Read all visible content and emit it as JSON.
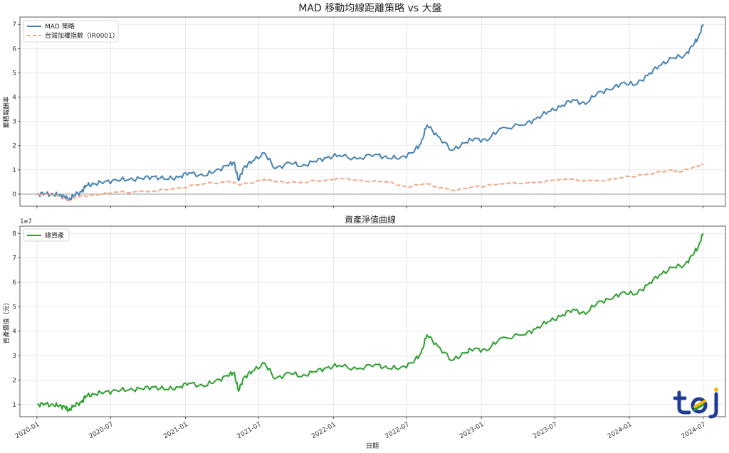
{
  "chart_data": [
    {
      "type": "line",
      "title": "MAD 移動均線距離策略 vs 大盤",
      "ylabel": "累積報酬率",
      "xlabel": "",
      "ylim": [
        -0.5,
        7.3
      ],
      "y_ticks": [
        "0",
        "1",
        "2",
        "3",
        "4",
        "5",
        "6",
        "7"
      ],
      "grid": true,
      "legend": "top-left",
      "series": [
        {
          "name": "MAD 策略",
          "color": "#4682b4",
          "style": "solid",
          "points": [
            [
              "2020-01-02",
              0.0
            ],
            [
              "2020-01-20",
              0.02
            ],
            [
              "2020-02-10",
              -0.02
            ],
            [
              "2020-02-25",
              -0.05
            ],
            [
              "2020-03-10",
              -0.1
            ],
            [
              "2020-03-19",
              -0.25
            ],
            [
              "2020-04-01",
              -0.05
            ],
            [
              "2020-04-20",
              0.1
            ],
            [
              "2020-05-01",
              0.35
            ],
            [
              "2020-05-20",
              0.42
            ],
            [
              "2020-06-15",
              0.5
            ],
            [
              "2020-07-15",
              0.58
            ],
            [
              "2020-08-15",
              0.6
            ],
            [
              "2020-09-15",
              0.65
            ],
            [
              "2020-10-15",
              0.72
            ],
            [
              "2020-11-15",
              0.62
            ],
            [
              "2020-12-15",
              0.7
            ],
            [
              "2021-01-10",
              0.88
            ],
            [
              "2021-02-15",
              0.75
            ],
            [
              "2021-03-15",
              0.95
            ],
            [
              "2021-04-15",
              1.18
            ],
            [
              "2021-05-01",
              1.32
            ],
            [
              "2021-05-12",
              0.55
            ],
            [
              "2021-05-25",
              1.1
            ],
            [
              "2021-06-15",
              1.35
            ],
            [
              "2021-07-15",
              1.7
            ],
            [
              "2021-08-10",
              1.05
            ],
            [
              "2021-09-15",
              1.3
            ],
            [
              "2021-10-15",
              1.15
            ],
            [
              "2021-11-15",
              1.35
            ],
            [
              "2021-12-15",
              1.5
            ],
            [
              "2022-01-15",
              1.6
            ],
            [
              "2022-03-01",
              1.45
            ],
            [
              "2022-04-15",
              1.65
            ],
            [
              "2022-05-15",
              1.48
            ],
            [
              "2022-06-15",
              1.5
            ],
            [
              "2022-07-15",
              1.7
            ],
            [
              "2022-08-05",
              2.1
            ],
            [
              "2022-08-20",
              2.85
            ],
            [
              "2022-09-15",
              2.4
            ],
            [
              "2022-10-20",
              1.8
            ],
            [
              "2022-11-20",
              2.1
            ],
            [
              "2022-12-15",
              2.3
            ],
            [
              "2023-01-15",
              2.2
            ],
            [
              "2023-02-15",
              2.7
            ],
            [
              "2023-04-15",
              2.85
            ],
            [
              "2023-05-15",
              3.1
            ],
            [
              "2023-06-15",
              3.4
            ],
            [
              "2023-07-15",
              3.6
            ],
            [
              "2023-08-15",
              3.9
            ],
            [
              "2023-09-15",
              3.7
            ],
            [
              "2023-10-15",
              4.2
            ],
            [
              "2023-11-15",
              4.3
            ],
            [
              "2023-12-15",
              4.6
            ],
            [
              "2024-01-15",
              4.5
            ],
            [
              "2024-02-15",
              4.9
            ],
            [
              "2024-03-15",
              5.3
            ],
            [
              "2024-04-15",
              5.6
            ],
            [
              "2024-05-15",
              5.7
            ],
            [
              "2024-06-05",
              6.1
            ],
            [
              "2024-06-20",
              6.5
            ],
            [
              "2024-07-01",
              7.0
            ]
          ]
        },
        {
          "name": "台灣加權指數（IR0001）",
          "color": "#f4a582",
          "style": "dashed",
          "points": [
            [
              "2020-01-02",
              0.0
            ],
            [
              "2020-02-15",
              -0.05
            ],
            [
              "2020-03-19",
              -0.25
            ],
            [
              "2020-04-15",
              -0.1
            ],
            [
              "2020-06-01",
              -0.02
            ],
            [
              "2020-07-15",
              0.08
            ],
            [
              "2020-10-15",
              0.12
            ],
            [
              "2020-12-15",
              0.25
            ],
            [
              "2021-02-15",
              0.42
            ],
            [
              "2021-04-20",
              0.52
            ],
            [
              "2021-05-15",
              0.38
            ],
            [
              "2021-07-15",
              0.6
            ],
            [
              "2021-08-15",
              0.5
            ],
            [
              "2021-10-15",
              0.48
            ],
            [
              "2021-12-31",
              0.6
            ],
            [
              "2022-01-15",
              0.65
            ],
            [
              "2022-03-15",
              0.55
            ],
            [
              "2022-05-15",
              0.5
            ],
            [
              "2022-07-01",
              0.3
            ],
            [
              "2022-08-15",
              0.42
            ],
            [
              "2022-10-25",
              0.15
            ],
            [
              "2022-12-15",
              0.3
            ],
            [
              "2023-02-15",
              0.42
            ],
            [
              "2023-05-15",
              0.48
            ],
            [
              "2023-07-15",
              0.6
            ],
            [
              "2023-10-25",
              0.55
            ],
            [
              "2023-12-15",
              0.68
            ],
            [
              "2024-02-15",
              0.82
            ],
            [
              "2024-04-15",
              1.0
            ],
            [
              "2024-05-01",
              0.9
            ],
            [
              "2024-06-15",
              1.15
            ],
            [
              "2024-07-01",
              1.25
            ]
          ]
        }
      ]
    },
    {
      "type": "line",
      "title": "資產淨值曲線",
      "ylabel": "資產價值（元）",
      "xlabel": "日期",
      "y_offset_label": "1e7",
      "ylim": [
        0.5,
        8.3
      ],
      "y_ticks": [
        "1",
        "2",
        "3",
        "4",
        "5",
        "6",
        "7",
        "8"
      ],
      "x_ticks": [
        "2020-01",
        "2020-07",
        "2021-01",
        "2021-07",
        "2022-01",
        "2022-07",
        "2023-01",
        "2023-07",
        "2024-01",
        "2024-07"
      ],
      "grid": true,
      "legend": "top-left",
      "series": [
        {
          "name": "總資產",
          "color": "#2ca02c",
          "style": "solid",
          "points": [
            [
              "2020-01-02",
              1.0
            ],
            [
              "2020-01-20",
              1.02
            ],
            [
              "2020-02-10",
              0.98
            ],
            [
              "2020-02-25",
              0.95
            ],
            [
              "2020-03-10",
              0.9
            ],
            [
              "2020-03-19",
              0.75
            ],
            [
              "2020-04-01",
              0.95
            ],
            [
              "2020-04-20",
              1.1
            ],
            [
              "2020-05-01",
              1.35
            ],
            [
              "2020-05-20",
              1.42
            ],
            [
              "2020-06-15",
              1.5
            ],
            [
              "2020-07-15",
              1.58
            ],
            [
              "2020-08-15",
              1.6
            ],
            [
              "2020-09-15",
              1.65
            ],
            [
              "2020-10-15",
              1.72
            ],
            [
              "2020-11-15",
              1.62
            ],
            [
              "2020-12-15",
              1.7
            ],
            [
              "2021-01-10",
              1.88
            ],
            [
              "2021-02-15",
              1.75
            ],
            [
              "2021-03-15",
              1.95
            ],
            [
              "2021-04-15",
              2.18
            ],
            [
              "2021-05-01",
              2.32
            ],
            [
              "2021-05-12",
              1.55
            ],
            [
              "2021-05-25",
              2.1
            ],
            [
              "2021-06-15",
              2.35
            ],
            [
              "2021-07-15",
              2.7
            ],
            [
              "2021-08-10",
              2.05
            ],
            [
              "2021-09-15",
              2.3
            ],
            [
              "2021-10-15",
              2.15
            ],
            [
              "2021-11-15",
              2.35
            ],
            [
              "2021-12-15",
              2.5
            ],
            [
              "2022-01-15",
              2.6
            ],
            [
              "2022-03-01",
              2.45
            ],
            [
              "2022-04-15",
              2.65
            ],
            [
              "2022-05-15",
              2.48
            ],
            [
              "2022-06-15",
              2.5
            ],
            [
              "2022-07-15",
              2.7
            ],
            [
              "2022-08-05",
              3.1
            ],
            [
              "2022-08-20",
              3.85
            ],
            [
              "2022-09-15",
              3.4
            ],
            [
              "2022-10-20",
              2.8
            ],
            [
              "2022-11-20",
              3.1
            ],
            [
              "2022-12-15",
              3.3
            ],
            [
              "2023-01-15",
              3.2
            ],
            [
              "2023-02-15",
              3.7
            ],
            [
              "2023-04-15",
              3.85
            ],
            [
              "2023-05-15",
              4.1
            ],
            [
              "2023-06-15",
              4.4
            ],
            [
              "2023-07-15",
              4.6
            ],
            [
              "2023-08-15",
              4.9
            ],
            [
              "2023-09-15",
              4.7
            ],
            [
              "2023-10-15",
              5.2
            ],
            [
              "2023-11-15",
              5.3
            ],
            [
              "2023-12-15",
              5.6
            ],
            [
              "2024-01-15",
              5.5
            ],
            [
              "2024-02-15",
              5.9
            ],
            [
              "2024-03-15",
              6.3
            ],
            [
              "2024-04-15",
              6.6
            ],
            [
              "2024-05-15",
              6.7
            ],
            [
              "2024-06-05",
              7.1
            ],
            [
              "2024-06-20",
              7.5
            ],
            [
              "2024-07-01",
              8.0
            ]
          ]
        }
      ]
    }
  ],
  "logo": {
    "text": "tej",
    "colors": [
      "#1f3a93",
      "#f2b705",
      "#2ca02c"
    ]
  }
}
